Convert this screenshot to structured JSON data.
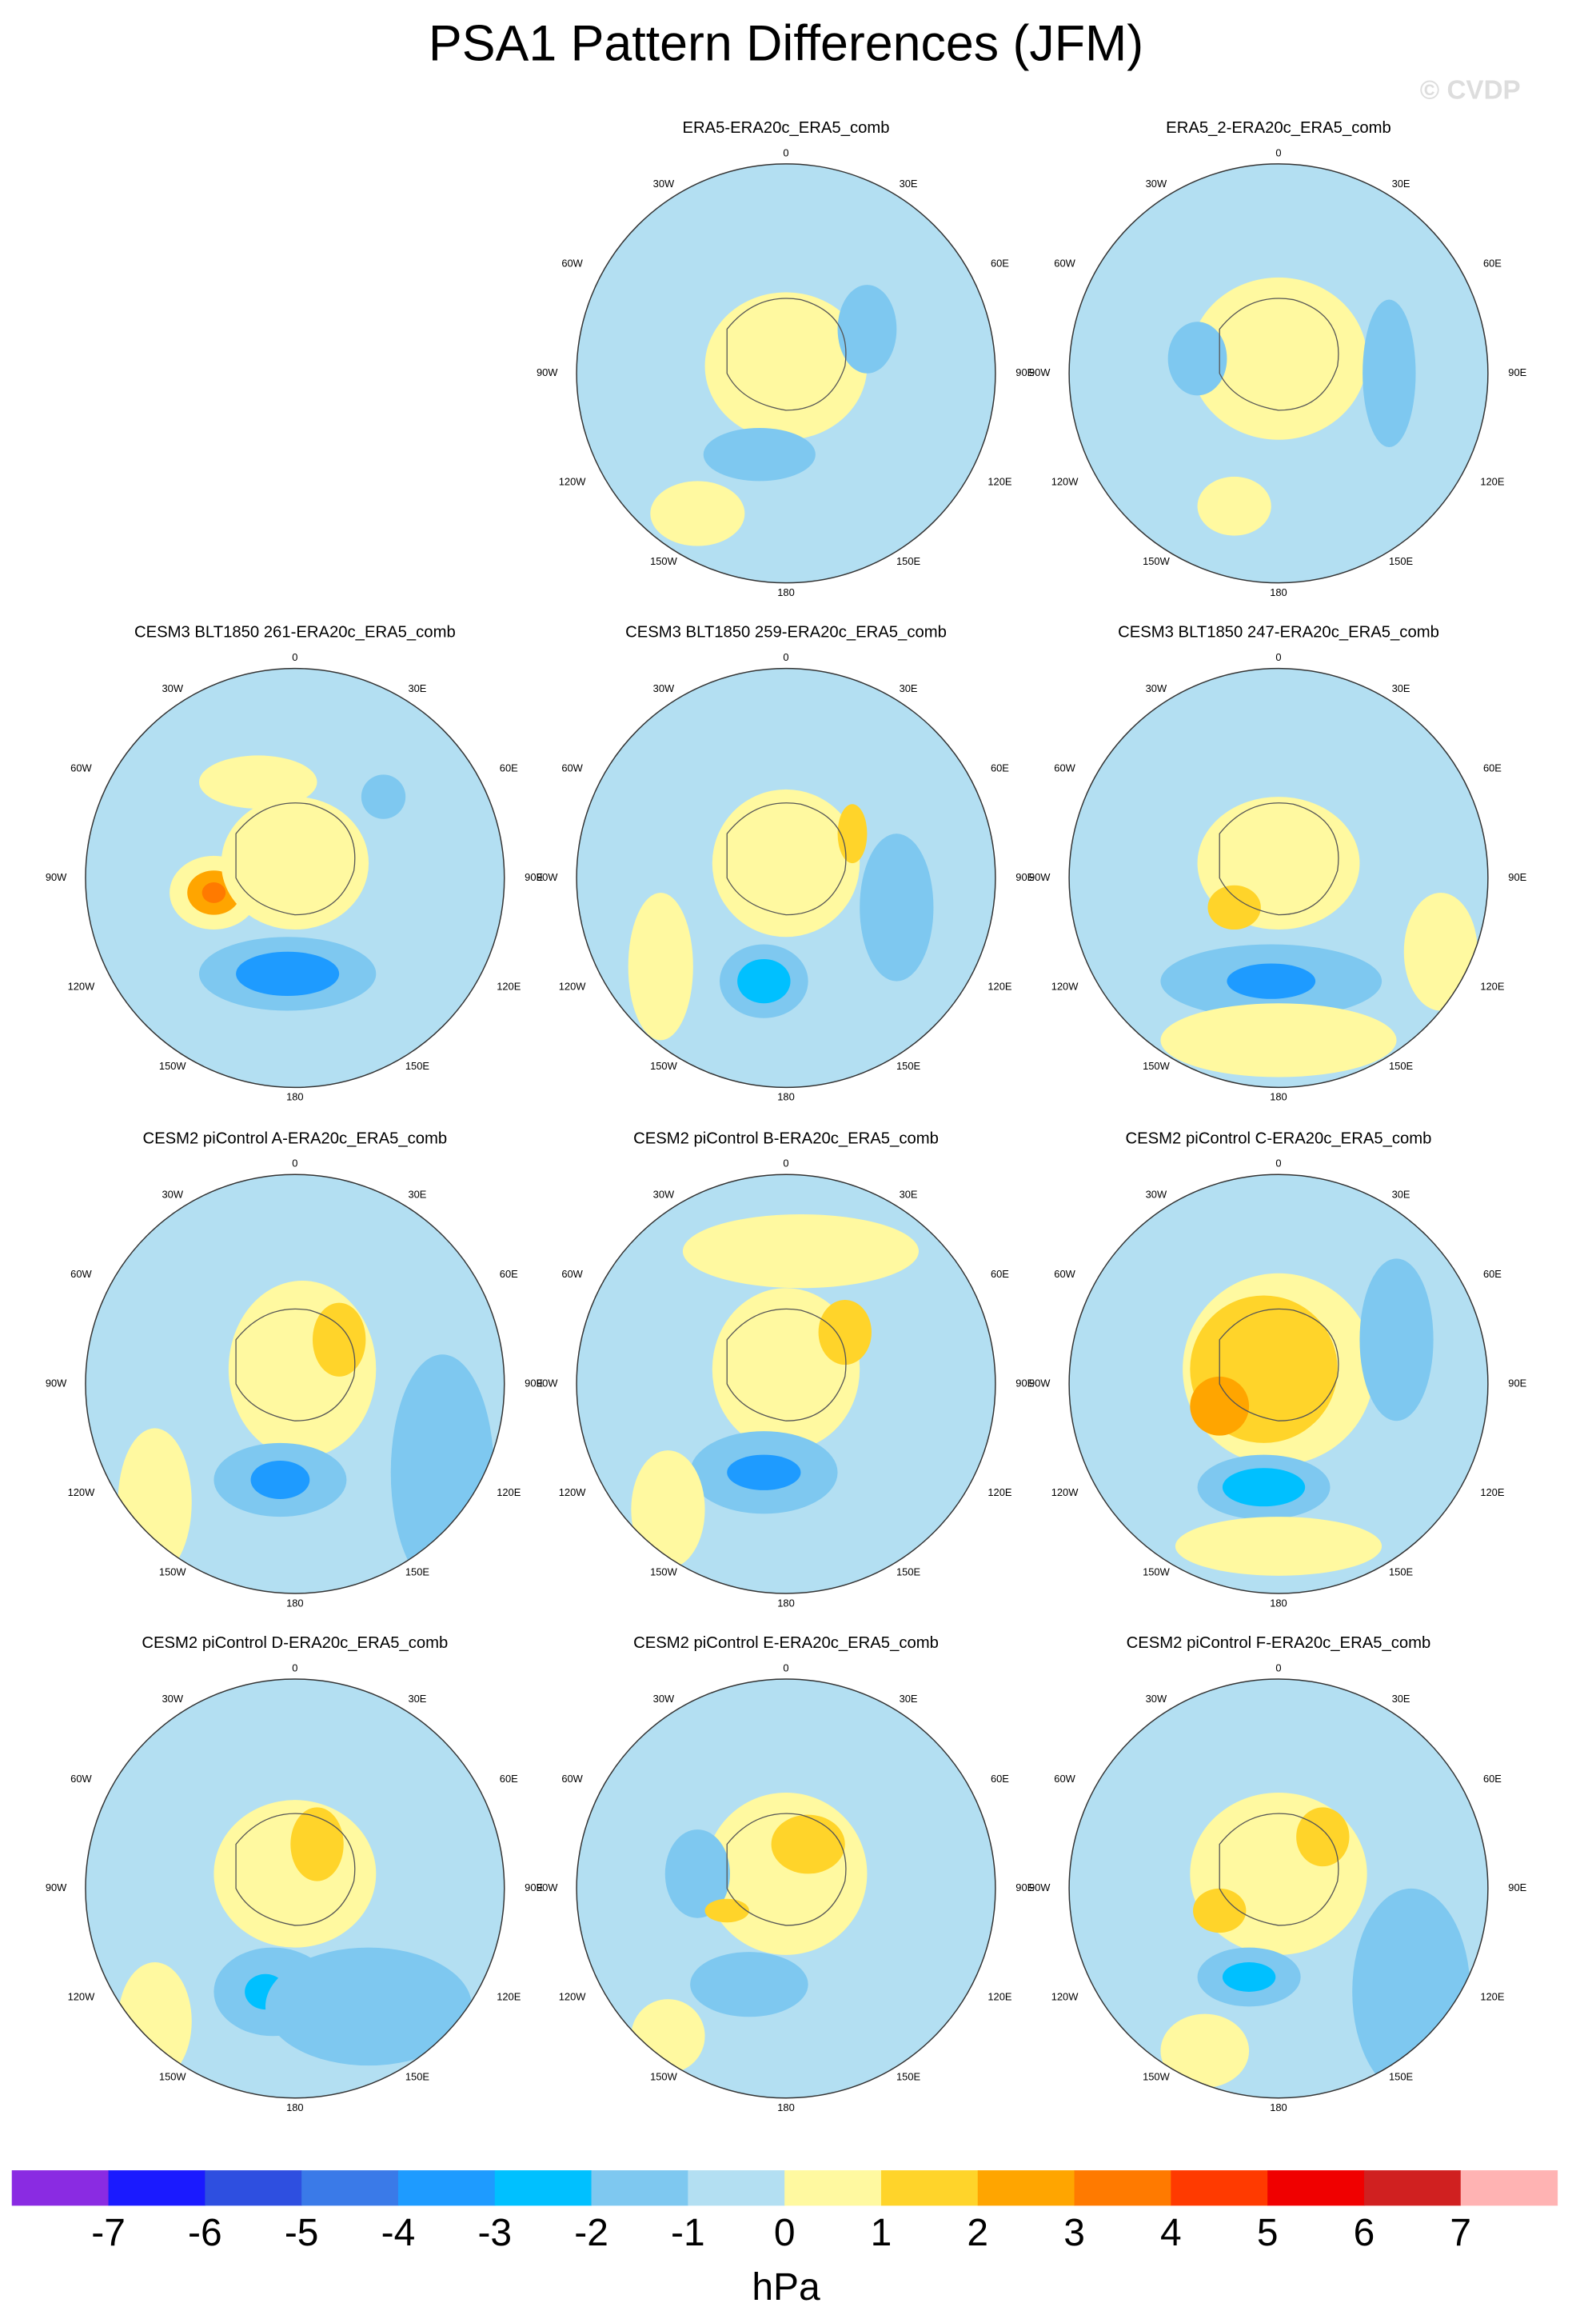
{
  "title": "PSA1 Pattern Differences (JFM)",
  "watermark": "© CVDP",
  "lon_labels": [
    "0",
    "30E",
    "60E",
    "90E",
    "120E",
    "150E",
    "180",
    "150W",
    "120W",
    "90W",
    "60W",
    "30W"
  ],
  "panels": [
    {
      "title": "ERA5-ERA20c_ERA5_comb"
    },
    {
      "title": "ERA5_2-ERA20c_ERA5_comb"
    },
    {
      "title": "CESM3 BLT1850 261-ERA20c_ERA5_comb"
    },
    {
      "title": "CESM3 BLT1850 259-ERA20c_ERA5_comb"
    },
    {
      "title": "CESM3 BLT1850 247-ERA20c_ERA5_comb"
    },
    {
      "title": "CESM2 piControl A-ERA20c_ERA5_comb"
    },
    {
      "title": "CESM2 piControl B-ERA20c_ERA5_comb"
    },
    {
      "title": "CESM2 piControl C-ERA20c_ERA5_comb"
    },
    {
      "title": "CESM2 piControl D-ERA20c_ERA5_comb"
    },
    {
      "title": "CESM2 piControl E-ERA20c_ERA5_comb"
    },
    {
      "title": "CESM2 piControl F-ERA20c_ERA5_comb"
    }
  ],
  "colorbar": {
    "levels": [
      -7,
      -6,
      -5,
      -4,
      -3,
      -2,
      -1,
      0,
      1,
      2,
      3,
      4,
      5,
      6,
      7
    ],
    "colors": [
      "#8a2be2",
      "#1a1aff",
      "#2e4fe0",
      "#3a7ae8",
      "#1e9bff",
      "#00c0ff",
      "#7ec8f0",
      "#b3dff2",
      "#fff9a0",
      "#ffd42a",
      "#ffa500",
      "#ff7a00",
      "#ff3a00",
      "#f00000",
      "#d02020",
      "#ffb3b3"
    ],
    "label": "hPa"
  }
}
